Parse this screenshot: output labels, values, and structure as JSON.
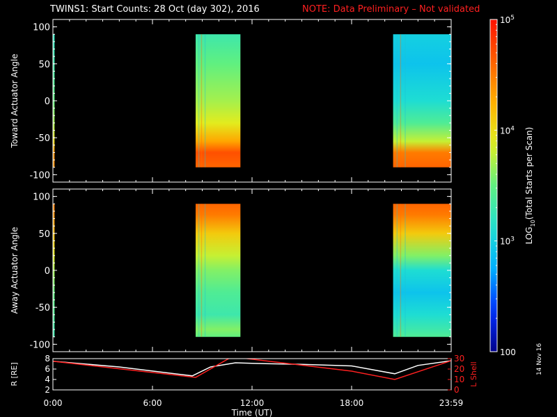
{
  "title": "TWINS1: Start Counts: 28 Oct (day 302), 2016",
  "note": "NOTE: Data Preliminary – Not validated",
  "date_stamp": "14 Nov 16",
  "colors": {
    "background": "#000000",
    "note": "#ff2020",
    "frame": "#ffffff",
    "r_line": "#ffffff",
    "lshell_line": "#ff2020",
    "colormap": [
      "#00008c",
      "#0030ff",
      "#00b0ff",
      "#20e0d0",
      "#60f080",
      "#e0f020",
      "#ffb000",
      "#ff6000",
      "#ff1000"
    ]
  },
  "chart_data": [
    {
      "type": "heatmap",
      "panel": "toward",
      "ylabel": "Toward Actuator Angle",
      "xlim": [
        0,
        24
      ],
      "ylim": [
        -110,
        110
      ],
      "yticks": [
        100,
        50,
        0,
        -50,
        -100
      ],
      "xticks": [
        0,
        6,
        12,
        18,
        24
      ],
      "data_intervals_ut_hours": [
        [
          8.6,
          11.3
        ],
        [
          20.5,
          24.0
        ]
      ],
      "profile_angles": [
        90,
        50,
        0,
        -30,
        -55,
        -70,
        -90
      ],
      "segments": [
        {
          "x_range": [
            8.6,
            11.3
          ],
          "log10_counts": [
            3.3,
            3.5,
            3.7,
            3.9,
            4.3,
            4.7,
            4.6
          ]
        },
        {
          "x_range": [
            20.5,
            24.0
          ],
          "log10_counts": [
            3.0,
            2.9,
            3.1,
            3.4,
            3.8,
            4.5,
            4.6
          ]
        }
      ],
      "edge_strip": {
        "x_range": [
          0.0,
          0.1
        ],
        "log10_counts": [
          3.2,
          3.3,
          3.5,
          3.7,
          4.0,
          4.4,
          4.4
        ]
      }
    },
    {
      "type": "heatmap",
      "panel": "away",
      "ylabel": "Away Actuator Angle",
      "xlim": [
        0,
        24
      ],
      "ylim": [
        -110,
        110
      ],
      "yticks": [
        100,
        50,
        0,
        -50,
        -100
      ],
      "xticks": [
        0,
        6,
        12,
        18,
        24
      ],
      "data_intervals_ut_hours": [
        [
          8.6,
          11.3
        ],
        [
          20.5,
          24.0
        ]
      ],
      "profile_angles": [
        90,
        75,
        50,
        20,
        0,
        -30,
        -60,
        -80,
        -90
      ],
      "segments": [
        {
          "x_range": [
            8.6,
            11.3
          ],
          "log10_counts": [
            4.6,
            4.5,
            4.1,
            3.8,
            3.6,
            3.4,
            3.3,
            3.6,
            3.5
          ]
        },
        {
          "x_range": [
            20.5,
            24.0
          ],
          "log10_counts": [
            4.6,
            4.5,
            4.1,
            3.6,
            3.1,
            2.9,
            3.1,
            3.3,
            3.4
          ]
        }
      ],
      "edge_strip": {
        "x_range": [
          0.0,
          0.1
        ],
        "log10_counts": [
          4.5,
          4.4,
          4.2,
          3.9,
          3.7,
          3.5,
          3.4,
          3.3,
          3.3
        ]
      }
    },
    {
      "type": "line",
      "panel": "ephemeris",
      "xlabel": "Time (UT)",
      "ylabel_left": "R [RE]",
      "ylabel_right": "L Shell",
      "xlim": [
        0,
        24
      ],
      "ylim_left": [
        2,
        8
      ],
      "yticks_left": [
        2,
        4,
        6,
        8
      ],
      "ylim_right": [
        0,
        30
      ],
      "yticks_right": [
        0,
        10,
        20,
        30
      ],
      "xtick_labels": [
        "0:00",
        "6:00",
        "12:00",
        "18:00",
        "23:59"
      ],
      "series": [
        {
          "axis": "left",
          "x": [
            0,
            4,
            8.4,
            9.5,
            11,
            12,
            15,
            18,
            20.6,
            22,
            24
          ],
          "values": [
            7.5,
            6.4,
            4.7,
            6.4,
            7.2,
            7.1,
            6.9,
            6.6,
            5.1,
            6.7,
            7.6
          ]
        },
        {
          "axis": "right",
          "x": [
            0,
            8.6,
            10.7,
            11.2,
            18,
            20.6,
            24
          ],
          "values": [
            27.5,
            12,
            31,
            31,
            18,
            10,
            28
          ]
        }
      ]
    }
  ],
  "colorbar": {
    "label_prefix": "LOG",
    "label_sub": "10",
    "label_suffix": "(Total Starts per Scan)",
    "range_log10": [
      2,
      5
    ],
    "ticks": [
      {
        "value": 5,
        "label_base": "10",
        "label_exp": "5"
      },
      {
        "value": 4,
        "label_base": "10",
        "label_exp": "4"
      },
      {
        "value": 3,
        "label_base": "10",
        "label_exp": "3"
      },
      {
        "value": 2,
        "label_base": "100",
        "label_exp": ""
      }
    ]
  }
}
